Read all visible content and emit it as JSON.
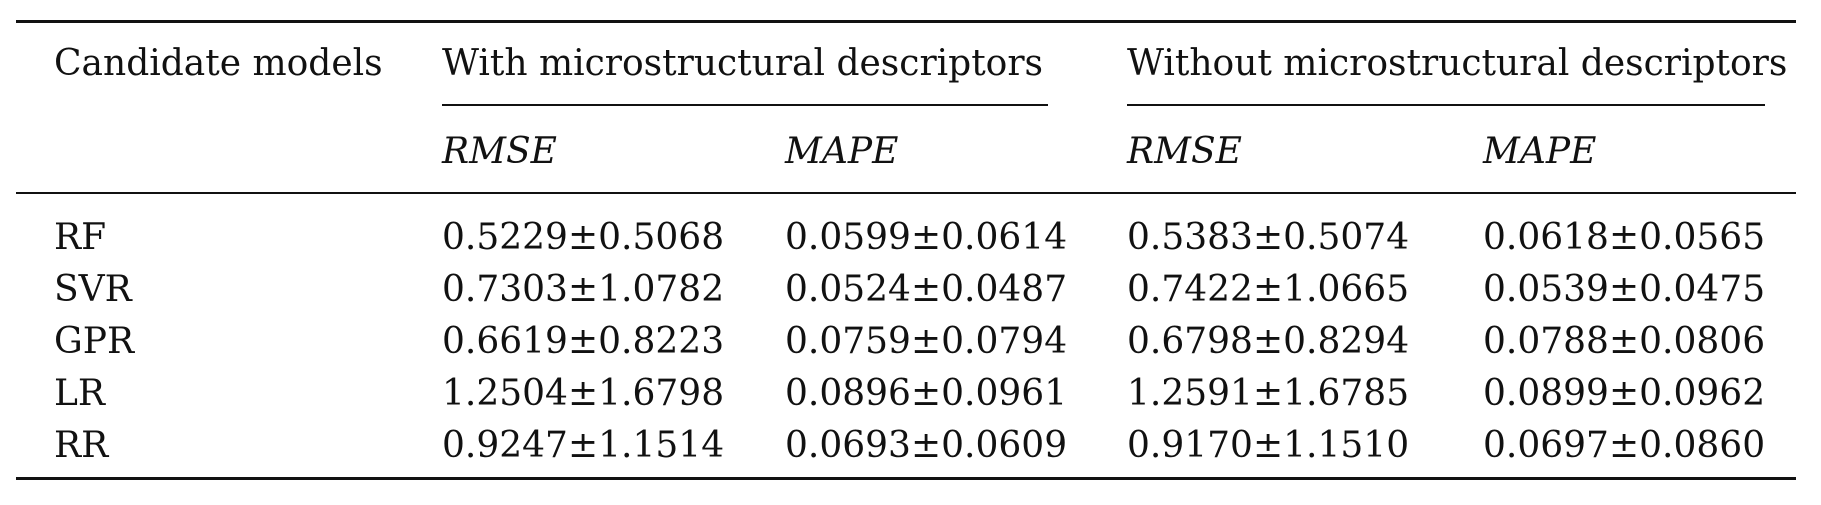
{
  "table": {
    "header": {
      "model_label": "Candidate models",
      "group_with": "With microstructural descriptors",
      "group_without": "Without microstructural descriptors",
      "subheaders": [
        "RMSE",
        "MAPE",
        "RMSE",
        "MAPE"
      ]
    },
    "rows": [
      {
        "model": "RF",
        "values": [
          "0.5229±0.5068",
          "0.0599±0.0614",
          "0.5383±0.5074",
          "0.0618±0.0565"
        ]
      },
      {
        "model": "SVR",
        "values": [
          "0.7303±1.0782",
          "0.0524±0.0487",
          "0.7422±1.0665",
          "0.0539±0.0475"
        ]
      },
      {
        "model": "GPR",
        "values": [
          "0.6619±0.8223",
          "0.0759±0.0794",
          "0.6798±0.8294",
          "0.0788±0.0806"
        ]
      },
      {
        "model": "LR",
        "values": [
          "1.2504±1.6798",
          "0.0896±0.0961",
          "1.2591±1.6785",
          "0.0899±0.0962"
        ]
      },
      {
        "model": "RR",
        "values": [
          "0.9247±1.1514",
          "0.0693±0.0609",
          "0.9170±1.1510",
          "0.0697±0.0860"
        ]
      }
    ]
  }
}
